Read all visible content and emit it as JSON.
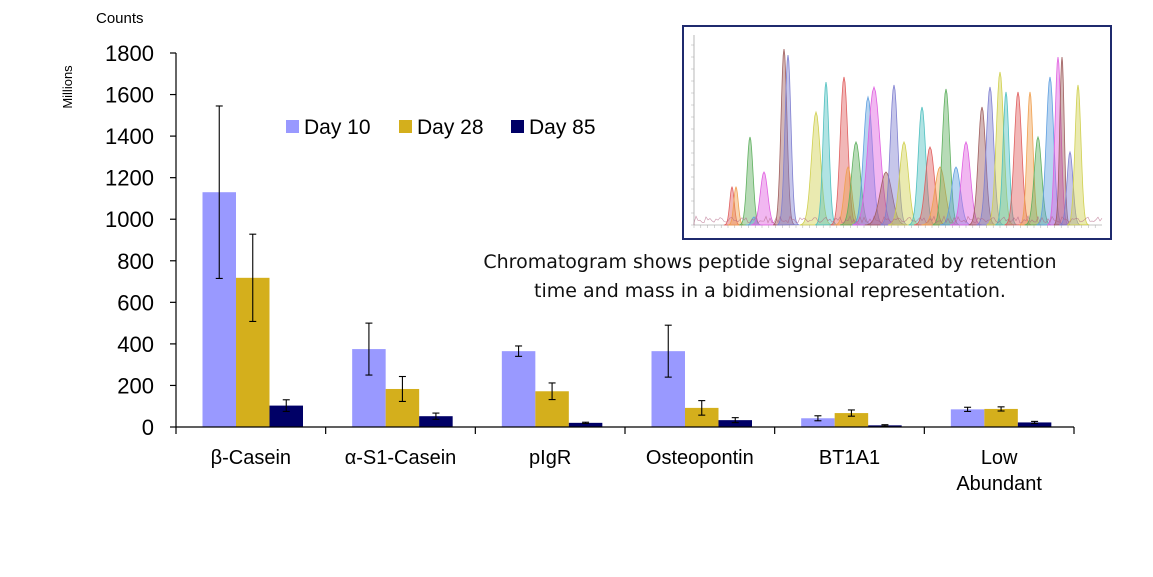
{
  "chart_data": {
    "type": "bar",
    "unit_label": "Counts",
    "ylabel": "Millions",
    "categories": [
      "β-Casein",
      "α-S1-Casein",
      "pIgR",
      "Osteopontin",
      "BT1A1",
      "Low Abundant"
    ],
    "series": [
      {
        "name": "Day 10",
        "color": "#9999ff",
        "values": [
          1130,
          375,
          365,
          365,
          42,
          85
        ],
        "errors": [
          415,
          125,
          25,
          125,
          12,
          10
        ]
      },
      {
        "name": "Day 28",
        "color": "#d4af1c",
        "values": [
          718,
          183,
          172,
          92,
          67,
          87
        ],
        "errors": [
          210,
          60,
          40,
          35,
          15,
          10
        ]
      },
      {
        "name": "Day 85",
        "color": "#000066",
        "values": [
          103,
          52,
          20,
          33,
          8,
          22
        ],
        "errors": [
          28,
          15,
          3,
          12,
          3,
          5
        ]
      }
    ],
    "ylim": [
      0,
      1800
    ],
    "yticks": [
      0,
      200,
      400,
      600,
      800,
      1000,
      1200,
      1400,
      1600,
      1800
    ],
    "legend_position": "top-center",
    "grid": false
  },
  "inset": {
    "caption_line1": "Chromatogram shows peptide signal separated by retention",
    "caption_line2": "time and mass in a bidimensional representation.",
    "border_color": "#1f2a6e"
  }
}
